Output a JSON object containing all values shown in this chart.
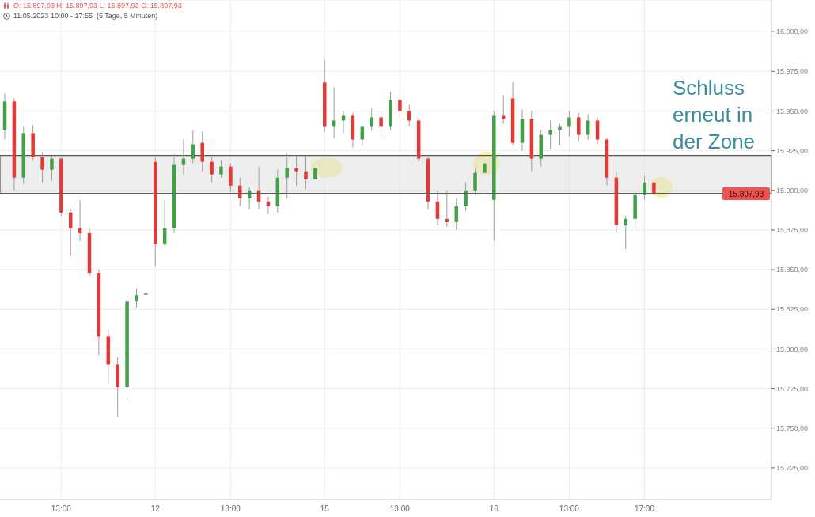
{
  "chart_data": {
    "type": "candlestick",
    "title": "O: 15.897,93  H: 15.897,93  L: 15.897,93  C: 15.897,93",
    "subtitle": "11.05.2023 10:00 - 17:55  (5 Tage, 5 Minuten)",
    "annotations": [
      "Schluss erneut in der Zone"
    ],
    "categories": [
      null,
      null,
      null,
      null,
      null,
      null,
      "13:00",
      null,
      null,
      null,
      null,
      null,
      null,
      null,
      null,
      null,
      "12",
      null,
      null,
      null,
      null,
      null,
      null,
      null,
      "13:00",
      null,
      null,
      null,
      null,
      null,
      null,
      null,
      null,
      null,
      "15",
      null,
      null,
      null,
      null,
      null,
      null,
      null,
      "13:00",
      null,
      null,
      null,
      null,
      null,
      null,
      null,
      null,
      null,
      "16",
      null,
      null,
      null,
      null,
      null,
      null,
      null,
      "13:00",
      null,
      null,
      null,
      null,
      null,
      null,
      null,
      "17:00",
      null,
      null,
      null,
      null,
      null,
      null,
      null,
      null,
      null,
      null,
      null,
      null,
      null
    ],
    "ohlc": [
      [
        15938,
        15961,
        15932,
        15956
      ],
      [
        15956,
        15958,
        15900,
        15908
      ],
      [
        15908,
        15940,
        15904,
        15936
      ],
      [
        15936,
        15941,
        15919,
        15921
      ],
      [
        15921,
        15924,
        15905,
        15913
      ],
      [
        15913,
        15922,
        15906,
        15920
      ],
      [
        15920,
        15921,
        15884,
        15886
      ],
      [
        15886,
        15888,
        15859,
        15876
      ],
      [
        15876,
        15894,
        15868,
        15873
      ],
      [
        15873,
        15876,
        15846,
        15848
      ],
      [
        15848,
        15850,
        15796,
        15808
      ],
      [
        15808,
        15812,
        15778,
        15790
      ],
      [
        15790,
        15795,
        15757,
        15776
      ],
      [
        15776,
        15833,
        15768,
        15830
      ],
      [
        15830,
        15838,
        15826,
        15834
      ],
      [
        15835,
        15836,
        15834,
        15835
      ],
      [
        15918,
        15921,
        15852,
        15866
      ],
      [
        15866,
        15894,
        15865,
        15876
      ],
      [
        15876,
        15923,
        15873,
        15916
      ],
      [
        15916,
        15932,
        15910,
        15920
      ],
      [
        15920,
        15938,
        15917,
        15929
      ],
      [
        15930,
        15937,
        15912,
        15918
      ],
      [
        15918,
        15921,
        15905,
        15910
      ],
      [
        15910,
        15919,
        15908,
        15915
      ],
      [
        15915,
        15917,
        15899,
        15903
      ],
      [
        15903,
        15908,
        15890,
        15895
      ],
      [
        15895,
        15902,
        15888,
        15900
      ],
      [
        15900,
        15915,
        15888,
        15893
      ],
      [
        15893,
        15896,
        15885,
        15890
      ],
      [
        15890,
        15913,
        15886,
        15908
      ],
      [
        15908,
        15923,
        15895,
        15914
      ],
      [
        15914,
        15922,
        15903,
        15912
      ],
      [
        15912,
        15922,
        15901,
        15907
      ],
      [
        15907,
        15914,
        15907,
        15914
      ],
      [
        15968,
        15982,
        15937,
        15940
      ],
      [
        15940,
        15965,
        15933,
        15944
      ],
      [
        15944,
        15950,
        15936,
        15947
      ],
      [
        15947,
        15949,
        15927,
        15932
      ],
      [
        15932,
        15940,
        15928,
        15940
      ],
      [
        15940,
        15952,
        15938,
        15946
      ],
      [
        15946,
        15950,
        15934,
        15940
      ],
      [
        15940,
        15962,
        15938,
        15957
      ],
      [
        15957,
        15960,
        15946,
        15950
      ],
      [
        15950,
        15954,
        15940,
        15944
      ],
      [
        15944,
        15946,
        15918,
        15920
      ],
      [
        15920,
        15921,
        15888,
        15893
      ],
      [
        15893,
        15900,
        15878,
        15882
      ],
      [
        15882,
        15900,
        15877,
        15880
      ],
      [
        15880,
        15895,
        15875,
        15890
      ],
      [
        15890,
        15905,
        15887,
        15900
      ],
      [
        15900,
        15914,
        15897,
        15911
      ],
      [
        15911,
        15917,
        15911,
        15917
      ],
      [
        15894,
        15950,
        15868,
        15947
      ],
      [
        15947,
        15960,
        15942,
        15945
      ],
      [
        15958,
        15968,
        15928,
        15930
      ],
      [
        15930,
        15951,
        15925,
        15945
      ],
      [
        15945,
        15950,
        15912,
        15920
      ],
      [
        15920,
        15938,
        15915,
        15935
      ],
      [
        15935,
        15944,
        15926,
        15938
      ],
      [
        15938,
        15942,
        15928,
        15940
      ],
      [
        15940,
        15950,
        15934,
        15946
      ],
      [
        15946,
        15949,
        15931,
        15935
      ],
      [
        15935,
        15948,
        15932,
        15944
      ],
      [
        15944,
        15946,
        15929,
        15932
      ],
      [
        15932,
        15933,
        15903,
        15908
      ],
      [
        15908,
        15912,
        15873,
        15878
      ],
      [
        15878,
        15884,
        15863,
        15882
      ],
      [
        15882,
        15900,
        15876,
        15897
      ],
      [
        15897,
        15909,
        15894,
        15905
      ],
      [
        15905,
        15905,
        15897.93,
        15897.93
      ],
      null,
      null,
      null,
      null,
      null,
      null,
      null,
      null,
      null,
      null,
      null,
      null
    ],
    "ylim": [
      15705,
      16020
    ],
    "yticks": [
      {
        "value": 15725,
        "label": "15.725,00"
      },
      {
        "value": 15750,
        "label": "15.750,00"
      },
      {
        "value": 15775,
        "label": "15.775,00"
      },
      {
        "value": 15800,
        "label": "15.800,00"
      },
      {
        "value": 15825,
        "label": "15.825,00"
      },
      {
        "value": 15850,
        "label": "15.850,00"
      },
      {
        "value": 15875,
        "label": "15.875,00"
      },
      {
        "value": 15900,
        "label": "15.900,00"
      },
      {
        "value": 15925,
        "label": "15.925,00"
      },
      {
        "value": 15950,
        "label": "15.950,00"
      },
      {
        "value": 15975,
        "label": "15.975,00"
      },
      {
        "value": 16000,
        "label": "16.000,00"
      }
    ],
    "grid": true,
    "bands": [
      {
        "axis": "y",
        "from": 15897.93,
        "to": 15922,
        "color": "#e0e0e0"
      }
    ],
    "ref_lines": [
      {
        "axis": "y",
        "value": 15897.93,
        "label": "15.897,93",
        "color": "#555555"
      }
    ]
  }
}
